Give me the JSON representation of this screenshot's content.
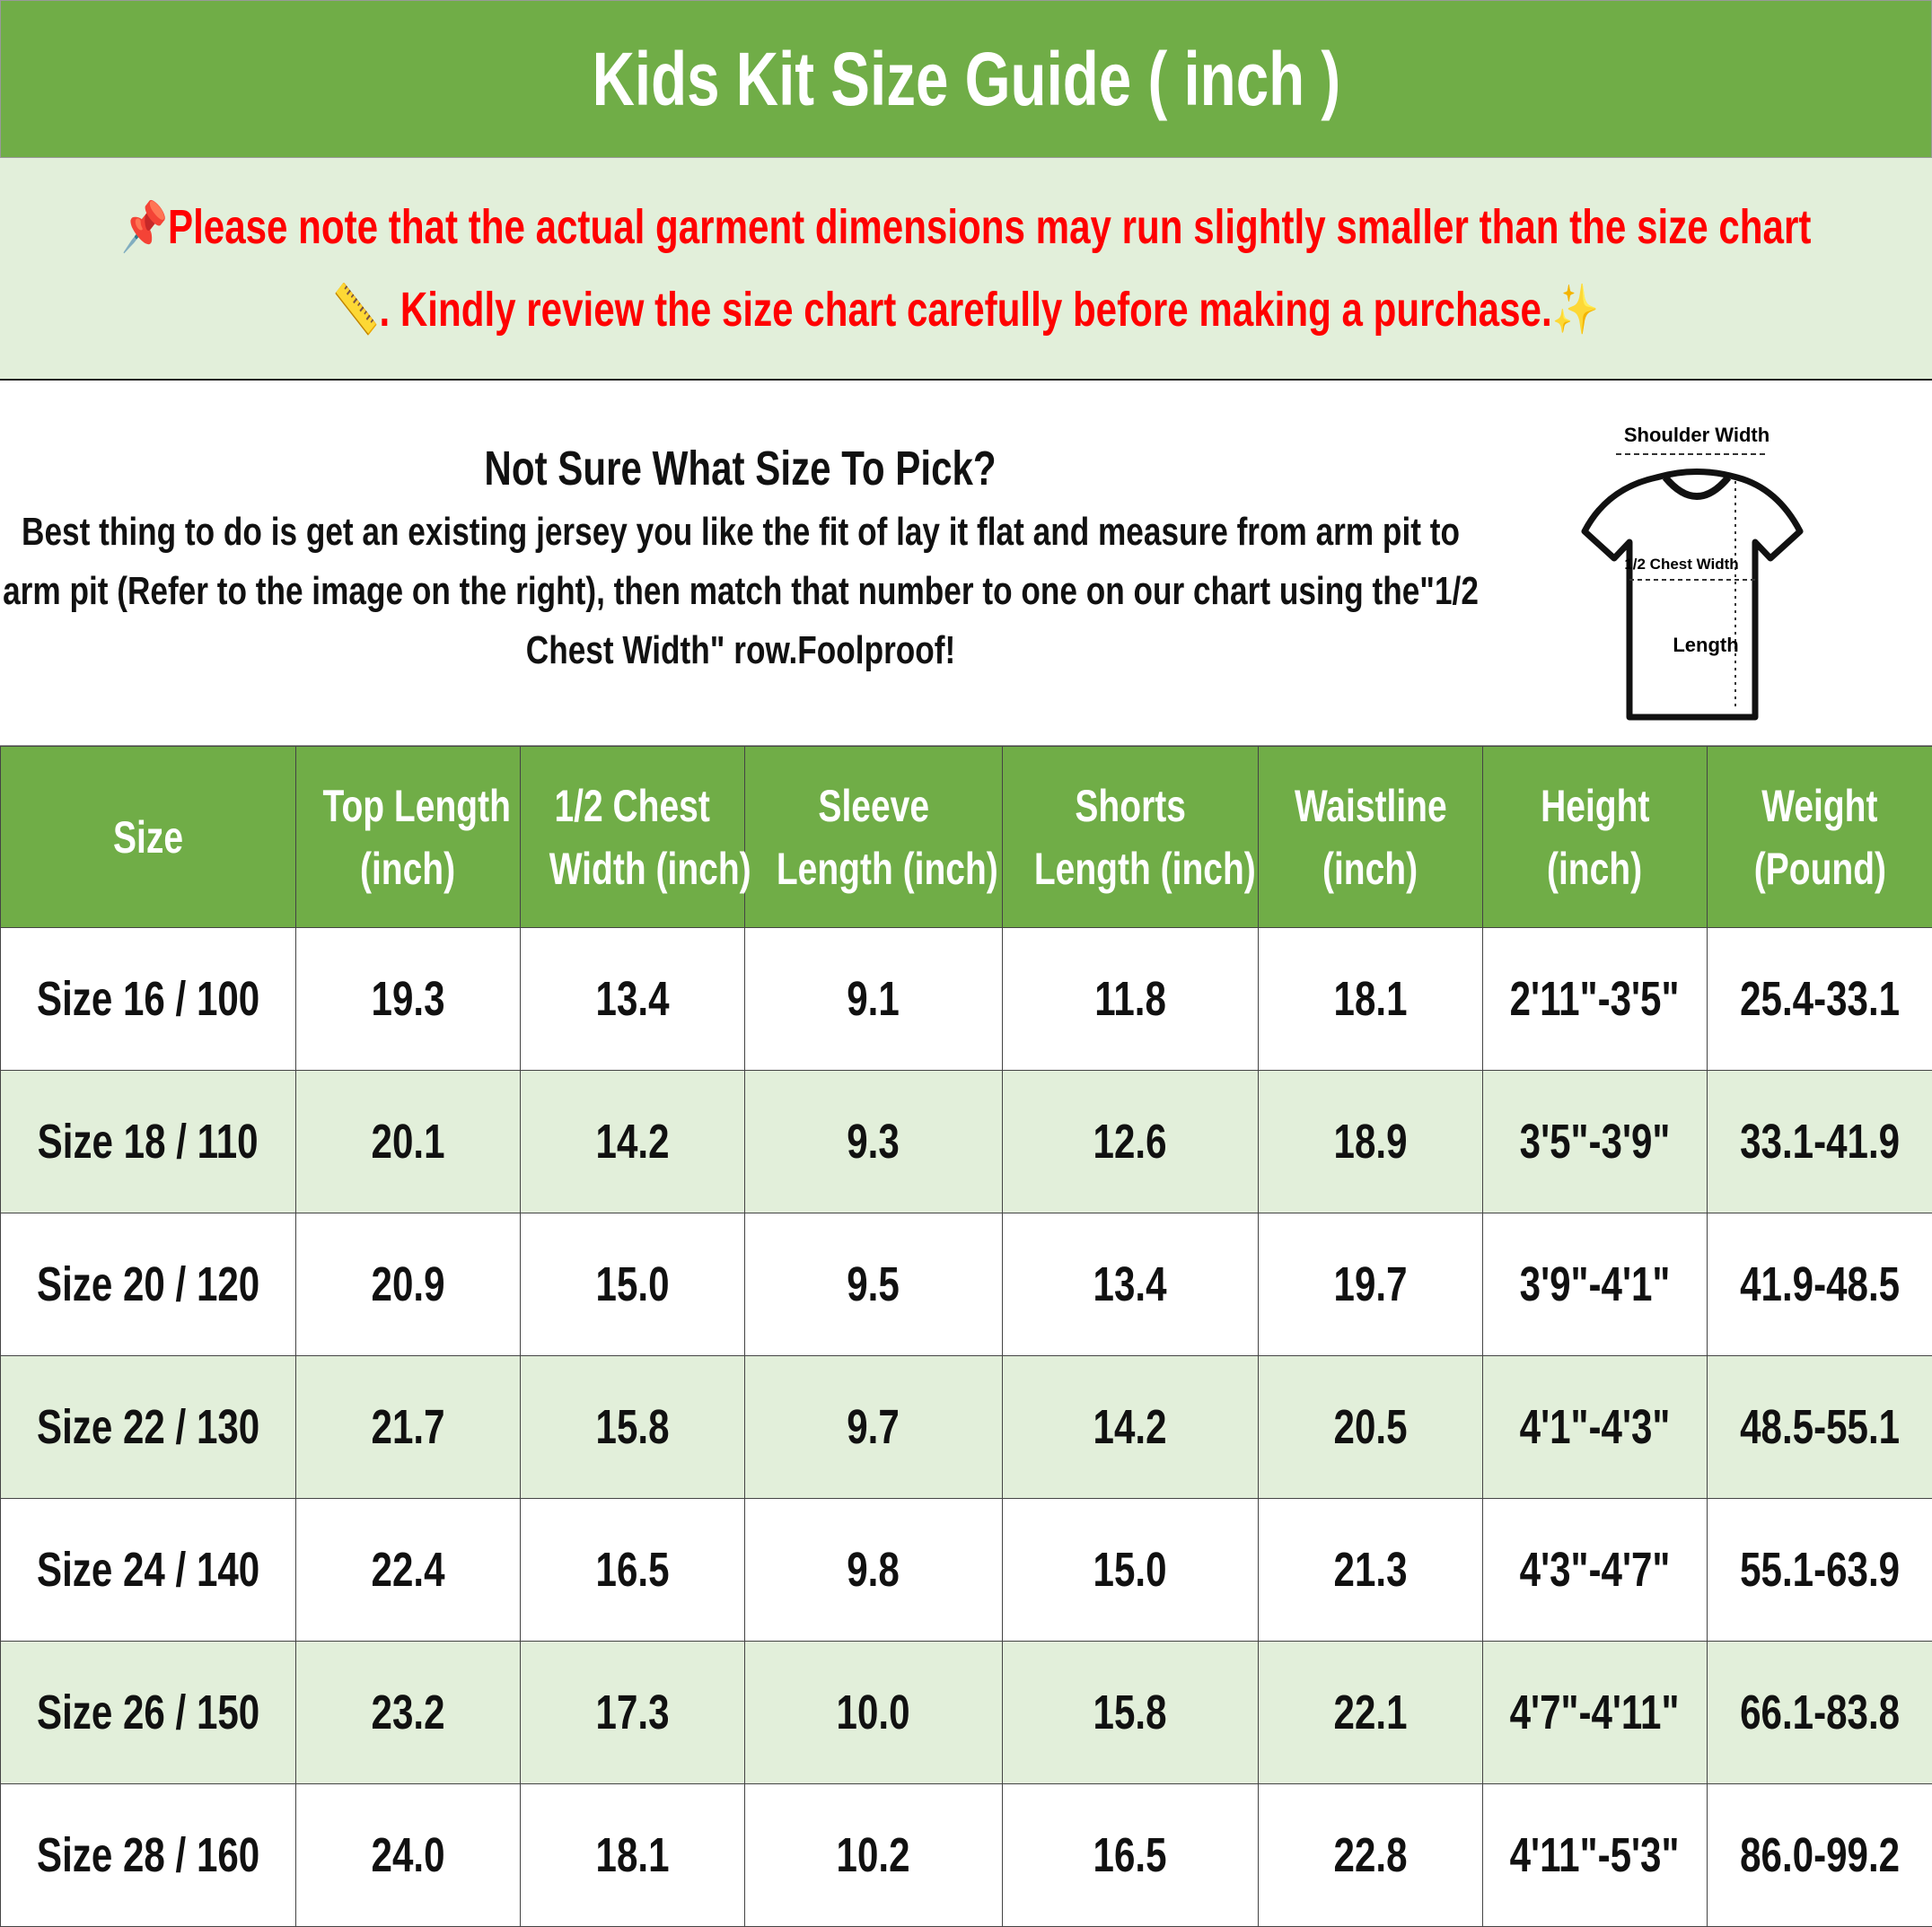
{
  "title": "Kids Kit Size Guide ( inch )",
  "note": {
    "line1": "Please note that the actual garment dimensions may run slightly smaller than the size chart",
    "line2": ". Kindly review the size chart carefully before making a purchase.",
    "icons": [
      "pushpin-icon",
      "ruler-icon",
      "sparkles-icon"
    ],
    "color": "#ff0000"
  },
  "intro": {
    "heading": "Not Sure What Size To Pick?",
    "body": "Best thing to do is get an existing jersey you like the fit of lay it flat and measure from arm pit to arm pit (Refer to the image on the right), then match that number to one on our chart using the\"1/2 Chest Width\" row.Foolproof!"
  },
  "diagram": {
    "shoulder": "Shoulder Width",
    "chest": "1/2 Chest Width",
    "length": "Length"
  },
  "colors": {
    "header_green": "#70ad47",
    "light_green": "#e2efda"
  },
  "table": {
    "headers": [
      [
        "Size"
      ],
      [
        "Top Length",
        "(inch)"
      ],
      [
        "1/2 Chest",
        "Width (inch)"
      ],
      [
        "Sleeve",
        "Length (inch)"
      ],
      [
        "Shorts",
        "Length (inch)"
      ],
      [
        "Waistline",
        "(inch)"
      ],
      [
        "Height",
        "(inch)"
      ],
      [
        "Weight",
        "(Pound)"
      ]
    ],
    "rows": [
      [
        "Size 16 / 100",
        "19.3",
        "13.4",
        "9.1",
        "11.8",
        "18.1",
        "2'11\"-3'5\"",
        "25.4-33.1"
      ],
      [
        "Size 18 / 110",
        "20.1",
        "14.2",
        "9.3",
        "12.6",
        "18.9",
        "3'5\"-3'9\"",
        "33.1-41.9"
      ],
      [
        "Size 20 / 120",
        "20.9",
        "15.0",
        "9.5",
        "13.4",
        "19.7",
        "3'9\"-4'1\"",
        "41.9-48.5"
      ],
      [
        "Size 22 / 130",
        "21.7",
        "15.8",
        "9.7",
        "14.2",
        "20.5",
        "4'1\"-4'3\"",
        "48.5-55.1"
      ],
      [
        "Size 24 / 140",
        "22.4",
        "16.5",
        "9.8",
        "15.0",
        "21.3",
        "4'3\"-4'7\"",
        "55.1-63.9"
      ],
      [
        "Size 26 / 150",
        "23.2",
        "17.3",
        "10.0",
        "15.8",
        "22.1",
        "4'7\"-4'11\"",
        "66.1-83.8"
      ],
      [
        "Size 28 / 160",
        "24.0",
        "18.1",
        "10.2",
        "16.5",
        "22.8",
        "4'11\"-5'3\"",
        "86.0-99.2"
      ]
    ]
  }
}
